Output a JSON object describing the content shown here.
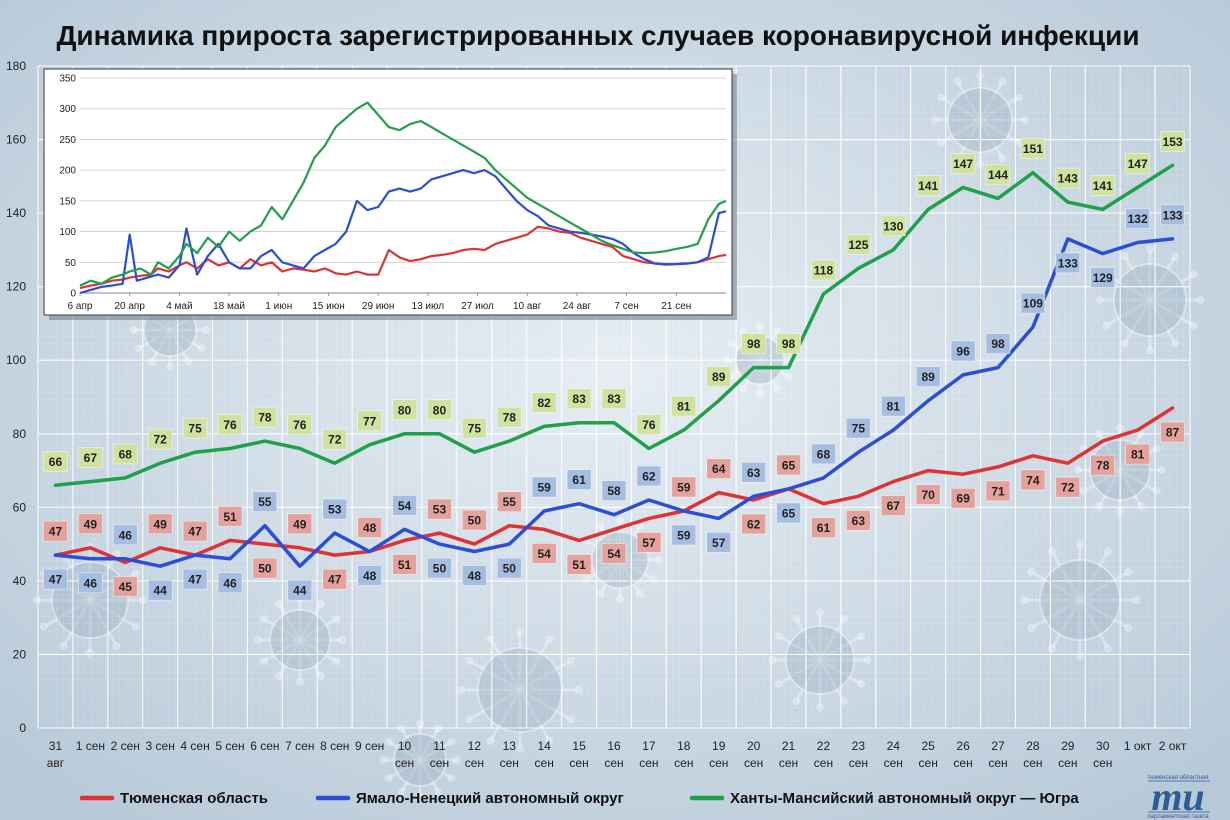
{
  "title": "Динамика прироста зарегистрированных случаев коронавирусной инфекции",
  "chart_data": {
    "type": "line",
    "title": "Динамика прироста зарегистрированных случаев коронавирусной инфекции",
    "xlabel": "",
    "ylabel": "",
    "ylim": [
      0,
      180
    ],
    "yticks": [
      0,
      20,
      40,
      60,
      80,
      100,
      120,
      140,
      160,
      180
    ],
    "grid": true,
    "legend_position": "bottom",
    "categories": [
      [
        "31",
        "авг"
      ],
      [
        "1 сен"
      ],
      [
        "2 сен"
      ],
      [
        "3 сен"
      ],
      [
        "4 сен"
      ],
      [
        "5 сен"
      ],
      [
        "6 сен"
      ],
      [
        "7 сен"
      ],
      [
        "8 сен"
      ],
      [
        "9 сен"
      ],
      [
        "10",
        "сен"
      ],
      [
        "11",
        "сен"
      ],
      [
        "12",
        "сен"
      ],
      [
        "13",
        "сен"
      ],
      [
        "14",
        "сен"
      ],
      [
        "15",
        "сен"
      ],
      [
        "16",
        "сен"
      ],
      [
        "17",
        "сен"
      ],
      [
        "18",
        "сен"
      ],
      [
        "19",
        "сен"
      ],
      [
        "20",
        "сен"
      ],
      [
        "21",
        "сен"
      ],
      [
        "22",
        "сен"
      ],
      [
        "23",
        "сен"
      ],
      [
        "24",
        "сен"
      ],
      [
        "25",
        "сен"
      ],
      [
        "26",
        "сен"
      ],
      [
        "27",
        "сен"
      ],
      [
        "28",
        "сен"
      ],
      [
        "29",
        "сен"
      ],
      [
        "30",
        "сен"
      ],
      [
        "1 окт"
      ],
      [
        "2 окт"
      ]
    ],
    "series": [
      {
        "name": "Тюменская область",
        "color": "#e03232",
        "label_bg": "#e4a29c",
        "values": [
          47,
          49,
          45,
          49,
          47,
          51,
          50,
          49,
          47,
          48,
          51,
          53,
          50,
          55,
          54,
          51,
          54,
          57,
          59,
          64,
          62,
          65,
          61,
          63,
          67,
          70,
          69,
          71,
          74,
          72,
          78,
          81,
          87
        ]
      },
      {
        "name": "Ямало-Ненецкий автономный округ",
        "color": "#2a4fd6",
        "label_bg": "#a4bde0",
        "values": [
          47,
          46,
          46,
          44,
          47,
          46,
          55,
          44,
          53,
          48,
          54,
          50,
          48,
          50,
          59,
          61,
          58,
          62,
          59,
          57,
          63,
          65,
          68,
          75,
          81,
          89,
          96,
          98,
          109,
          133,
          129,
          132,
          133
        ]
      },
      {
        "name": "Ханты-Мансийский автономный округ — Югра",
        "color": "#1fa04a",
        "label_bg": "#cfe2a0",
        "values": [
          66,
          67,
          68,
          72,
          75,
          76,
          78,
          76,
          72,
          77,
          80,
          80,
          75,
          78,
          82,
          83,
          83,
          76,
          81,
          89,
          98,
          98,
          118,
          125,
          130,
          141,
          147,
          144,
          151,
          143,
          141,
          147,
          153
        ]
      }
    ],
    "inset": {
      "type": "line",
      "ylim": [
        0,
        350
      ],
      "yticks": [
        0,
        50,
        100,
        150,
        200,
        250,
        300,
        350
      ],
      "xticks": [
        "6 апр",
        "20 апр",
        "4 май",
        "18 май",
        "1 июн",
        "15 июн",
        "29 июн",
        "13 июл",
        "27 июл",
        "10 авг",
        "24 авг",
        "7 сен",
        "21 сен"
      ],
      "days": 182,
      "series": [
        {
          "name": "Тюменская область",
          "color": "#e03232",
          "points": [
            [
              0,
              8
            ],
            [
              3,
              12
            ],
            [
              6,
              15
            ],
            [
              9,
              20
            ],
            [
              12,
              22
            ],
            [
              14,
              25
            ],
            [
              17,
              28
            ],
            [
              20,
              30
            ],
            [
              22,
              40
            ],
            [
              25,
              35
            ],
            [
              28,
              45
            ],
            [
              30,
              50
            ],
            [
              33,
              40
            ],
            [
              36,
              55
            ],
            [
              39,
              45
            ],
            [
              42,
              50
            ],
            [
              45,
              40
            ],
            [
              48,
              55
            ],
            [
              51,
              45
            ],
            [
              54,
              50
            ],
            [
              57,
              35
            ],
            [
              60,
              40
            ],
            [
              63,
              38
            ],
            [
              66,
              35
            ],
            [
              69,
              40
            ],
            [
              72,
              32
            ],
            [
              75,
              30
            ],
            [
              78,
              35
            ],
            [
              81,
              30
            ],
            [
              84,
              30
            ],
            [
              87,
              70
            ],
            [
              90,
              58
            ],
            [
              93,
              52
            ],
            [
              96,
              55
            ],
            [
              99,
              60
            ],
            [
              102,
              62
            ],
            [
              105,
              65
            ],
            [
              108,
              70
            ],
            [
              111,
              72
            ],
            [
              114,
              70
            ],
            [
              117,
              80
            ],
            [
              120,
              85
            ],
            [
              123,
              90
            ],
            [
              126,
              95
            ],
            [
              129,
              108
            ],
            [
              132,
              105
            ],
            [
              135,
              100
            ],
            [
              138,
              98
            ],
            [
              141,
              90
            ],
            [
              144,
              85
            ],
            [
              147,
              80
            ],
            [
              150,
              75
            ],
            [
              153,
              60
            ],
            [
              156,
              55
            ],
            [
              159,
              50
            ],
            [
              162,
              48
            ],
            [
              165,
              47
            ],
            [
              168,
              47
            ],
            [
              171,
              48
            ],
            [
              174,
              50
            ],
            [
              177,
              55
            ],
            [
              180,
              60
            ],
            [
              182,
              62
            ]
          ]
        },
        {
          "name": "Ямало-Ненецкий автономный округ",
          "color": "#2a4fd6",
          "points": [
            [
              0,
              0
            ],
            [
              3,
              5
            ],
            [
              6,
              10
            ],
            [
              9,
              12
            ],
            [
              12,
              15
            ],
            [
              14,
              95
            ],
            [
              16,
              20
            ],
            [
              19,
              25
            ],
            [
              22,
              30
            ],
            [
              25,
              25
            ],
            [
              28,
              45
            ],
            [
              30,
              105
            ],
            [
              33,
              30
            ],
            [
              36,
              60
            ],
            [
              39,
              80
            ],
            [
              42,
              50
            ],
            [
              45,
              40
            ],
            [
              48,
              40
            ],
            [
              51,
              60
            ],
            [
              54,
              70
            ],
            [
              57,
              50
            ],
            [
              60,
              45
            ],
            [
              63,
              40
            ],
            [
              66,
              60
            ],
            [
              69,
              70
            ],
            [
              72,
              80
            ],
            [
              75,
              100
            ],
            [
              78,
              150
            ],
            [
              81,
              135
            ],
            [
              84,
              140
            ],
            [
              87,
              165
            ],
            [
              90,
              170
            ],
            [
              93,
              165
            ],
            [
              96,
              170
            ],
            [
              99,
              185
            ],
            [
              102,
              190
            ],
            [
              105,
              195
            ],
            [
              108,
              200
            ],
            [
              111,
              195
            ],
            [
              114,
              200
            ],
            [
              117,
              190
            ],
            [
              120,
              170
            ],
            [
              123,
              150
            ],
            [
              126,
              135
            ],
            [
              129,
              125
            ],
            [
              132,
              110
            ],
            [
              135,
              105
            ],
            [
              138,
              100
            ],
            [
              141,
              98
            ],
            [
              144,
              95
            ],
            [
              147,
              92
            ],
            [
              150,
              88
            ],
            [
              153,
              80
            ],
            [
              156,
              65
            ],
            [
              159,
              55
            ],
            [
              162,
              48
            ],
            [
              165,
              46
            ],
            [
              168,
              47
            ],
            [
              171,
              48
            ],
            [
              174,
              50
            ],
            [
              177,
              58
            ],
            [
              180,
              130
            ],
            [
              182,
              133
            ]
          ]
        },
        {
          "name": "Ханты-Мансийский автономный округ — Югра",
          "color": "#1fa04a",
          "points": [
            [
              0,
              12
            ],
            [
              3,
              20
            ],
            [
              6,
              15
            ],
            [
              9,
              25
            ],
            [
              12,
              30
            ],
            [
              14,
              35
            ],
            [
              17,
              40
            ],
            [
              20,
              30
            ],
            [
              22,
              50
            ],
            [
              25,
              40
            ],
            [
              28,
              60
            ],
            [
              30,
              80
            ],
            [
              33,
              65
            ],
            [
              36,
              90
            ],
            [
              39,
              75
            ],
            [
              42,
              100
            ],
            [
              45,
              85
            ],
            [
              48,
              100
            ],
            [
              51,
              110
            ],
            [
              54,
              140
            ],
            [
              57,
              120
            ],
            [
              60,
              150
            ],
            [
              63,
              180
            ],
            [
              66,
              220
            ],
            [
              69,
              240
            ],
            [
              72,
              270
            ],
            [
              75,
              285
            ],
            [
              78,
              300
            ],
            [
              81,
              310
            ],
            [
              84,
              290
            ],
            [
              87,
              270
            ],
            [
              90,
              265
            ],
            [
              93,
              275
            ],
            [
              96,
              280
            ],
            [
              99,
              270
            ],
            [
              102,
              260
            ],
            [
              105,
              250
            ],
            [
              108,
              240
            ],
            [
              111,
              230
            ],
            [
              114,
              220
            ],
            [
              117,
              200
            ],
            [
              120,
              185
            ],
            [
              123,
              170
            ],
            [
              126,
              155
            ],
            [
              129,
              145
            ],
            [
              132,
              135
            ],
            [
              135,
              125
            ],
            [
              138,
              115
            ],
            [
              141,
              105
            ],
            [
              144,
              95
            ],
            [
              147,
              85
            ],
            [
              150,
              78
            ],
            [
              153,
              72
            ],
            [
              156,
              66
            ],
            [
              159,
              65
            ],
            [
              162,
              66
            ],
            [
              165,
              68
            ],
            [
              168,
              72
            ],
            [
              171,
              75
            ],
            [
              174,
              80
            ],
            [
              177,
              120
            ],
            [
              180,
              145
            ],
            [
              182,
              150
            ]
          ]
        }
      ]
    }
  },
  "logo": {
    "small_top": "тюменская областная",
    "big": "mu",
    "small_bottom": "парламентская газета"
  }
}
